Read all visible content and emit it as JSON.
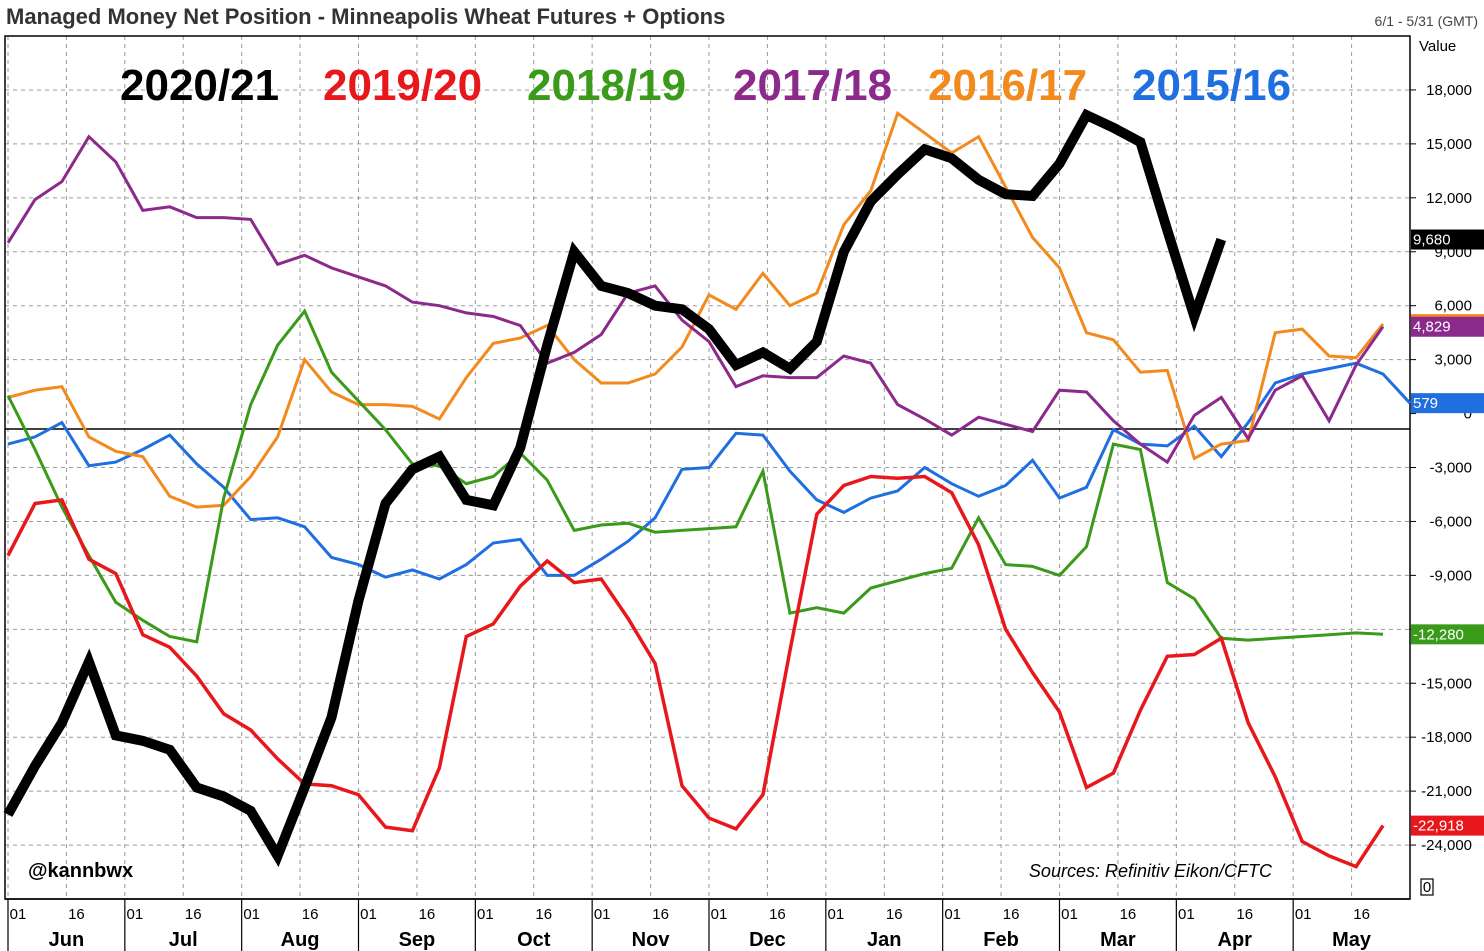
{
  "title": "Managed Money Net Position - Minneapolis Wheat Futures + Options",
  "date_range": "6/1 - 5/31 (GMT)",
  "value_label": "Value",
  "handle": "@kannbwx",
  "source": "Sources: Refinitiv Eikon/CFTC",
  "zero_box": "0",
  "chart_data": {
    "type": "line",
    "title": "Managed Money Net Position - Minneapolis Wheat Futures + Options",
    "ylim": [
      -27000,
      21000
    ],
    "yticks": [
      18000,
      15000,
      12000,
      9000,
      6000,
      3000,
      0,
      -3000,
      -6000,
      -9000,
      -12000,
      -15000,
      -18000,
      -21000,
      -24000
    ],
    "ytick_labels": [
      "18,000",
      "15,000",
      "12,000",
      "9,000",
      "6,000",
      "3,000",
      "0",
      "-3,000",
      "-6,000",
      "-9,000",
      "-12,000",
      "-15,000",
      "-18,000",
      "-21,000",
      "-24,000"
    ],
    "x_weeks": 52,
    "months": [
      "Jun",
      "Jul",
      "Aug",
      "Sep",
      "Oct",
      "Nov",
      "Dec",
      "Jan",
      "Feb",
      "Mar",
      "Apr",
      "May"
    ],
    "day_labels": [
      "01",
      "16"
    ],
    "grid": true,
    "series": [
      {
        "name": "2015/16",
        "color": "#1f6fe0",
        "width": 3,
        "last_label": "579",
        "values": [
          -1700,
          -1300,
          -500,
          -2900,
          -2700,
          -2000,
          -1200,
          -2800,
          -4100,
          -5900,
          -5800,
          -6300,
          -8000,
          -8400,
          -9100,
          -8700,
          -9200,
          -8400,
          -7200,
          -7000,
          -9000,
          -9000,
          -8100,
          -7100,
          -5800,
          -3100,
          -3000,
          -1100,
          -1200,
          -3200,
          -4800,
          -5500,
          -4700,
          -4300,
          -3000,
          -3900,
          -4600,
          -4000,
          -2600,
          -4700,
          -4100,
          -900,
          -1700,
          -1800,
          -700,
          -2400,
          -500,
          1700,
          2200,
          2500,
          2800,
          2200,
          579
        ]
      },
      {
        "name": "2016/17",
        "color": "#f28a1e",
        "width": 3,
        "last_label": "4,976",
        "values": [
          900,
          1300,
          1500,
          -1300,
          -2100,
          -2400,
          -4600,
          -5200,
          -5100,
          -3500,
          -1300,
          3000,
          1200,
          500,
          500,
          400,
          -300,
          2000,
          3900,
          4200,
          4900,
          3000,
          1700,
          1700,
          2200,
          3700,
          6600,
          5800,
          7800,
          6000,
          6700,
          10500,
          12400,
          16700,
          15600,
          14500,
          15400,
          12600,
          9800,
          8100,
          4500,
          4100,
          2300,
          2400,
          -2500,
          -1700,
          -1500,
          4500,
          4700,
          3200,
          3100,
          4976
        ]
      },
      {
        "name": "2017/18",
        "color": "#8b2a8b",
        "width": 3,
        "last_label": "4,829",
        "values": [
          9500,
          11900,
          12900,
          15400,
          14000,
          11300,
          11500,
          10900,
          10900,
          10800,
          8300,
          8800,
          8100,
          7600,
          7100,
          6200,
          6000,
          5600,
          5400,
          4900,
          2800,
          3400,
          4400,
          6700,
          7100,
          5200,
          4000,
          1500,
          2100,
          2000,
          2000,
          3200,
          2800,
          500,
          -300,
          -1200,
          -200,
          -600,
          -1000,
          1300,
          1200,
          -400,
          -1700,
          -2700,
          -100,
          900,
          -1400,
          1300,
          2100,
          -400,
          2700,
          4829
        ]
      },
      {
        "name": "2018/19",
        "color": "#3a9a1a",
        "width": 3,
        "last_label": "-12,280",
        "values": [
          1000,
          -2000,
          -5200,
          -7900,
          -10500,
          -11500,
          -12400,
          -12700,
          -4700,
          500,
          3800,
          5700,
          2300,
          700,
          -900,
          -2800,
          -2900,
          -3900,
          -3500,
          -2200,
          -3700,
          -6500,
          -6200,
          -6100,
          -6600,
          -6500,
          -6400,
          -6300,
          -3200,
          -11100,
          -10800,
          -11100,
          -9700,
          -9300,
          -8900,
          -8600,
          -5800,
          -8400,
          -8500,
          -9000,
          -7400,
          -1700,
          -2000,
          -9400,
          -10300,
          -12500,
          -12600,
          -12500,
          -12400,
          -12300,
          -12200,
          -12280
        ]
      },
      {
        "name": "2019/20",
        "color": "#e8171c",
        "width": 3.5,
        "last_label": "-22,918",
        "values": [
          -7900,
          -5000,
          -4800,
          -8100,
          -8900,
          -12300,
          -13000,
          -14600,
          -16700,
          -17600,
          -19200,
          -20600,
          -20700,
          -21200,
          -23000,
          -23200,
          -19700,
          -12400,
          -11700,
          -9600,
          -8200,
          -9400,
          -9200,
          -11400,
          -13900,
          -20700,
          -22500,
          -23100,
          -21200,
          -13200,
          -5600,
          -4000,
          -3500,
          -3600,
          -3500,
          -4400,
          -7300,
          -12000,
          -14400,
          -16600,
          -20800,
          -20000,
          -16500,
          -13500,
          -13400,
          -12500,
          -17200,
          -20200,
          -23800,
          -24600,
          -25200,
          -22918
        ]
      },
      {
        "name": "2020/21",
        "color": "#000000",
        "width": 10,
        "last_label": "9,680",
        "values": [
          -22300,
          -19600,
          -17200,
          -13800,
          -17900,
          -18200,
          -18700,
          -20800,
          -21300,
          -22100,
          -24600,
          -20800,
          -16900,
          -10400,
          -5000,
          -3100,
          -2400,
          -4800,
          -5100,
          -1900,
          3800,
          9000,
          7100,
          6700,
          6000,
          5800,
          4700,
          2700,
          3400,
          2500,
          4000,
          9000,
          11800,
          13300,
          14700,
          14200,
          13000,
          12200,
          12100,
          13900,
          16600,
          15900,
          15100,
          10200,
          5400,
          9680
        ]
      }
    ]
  }
}
